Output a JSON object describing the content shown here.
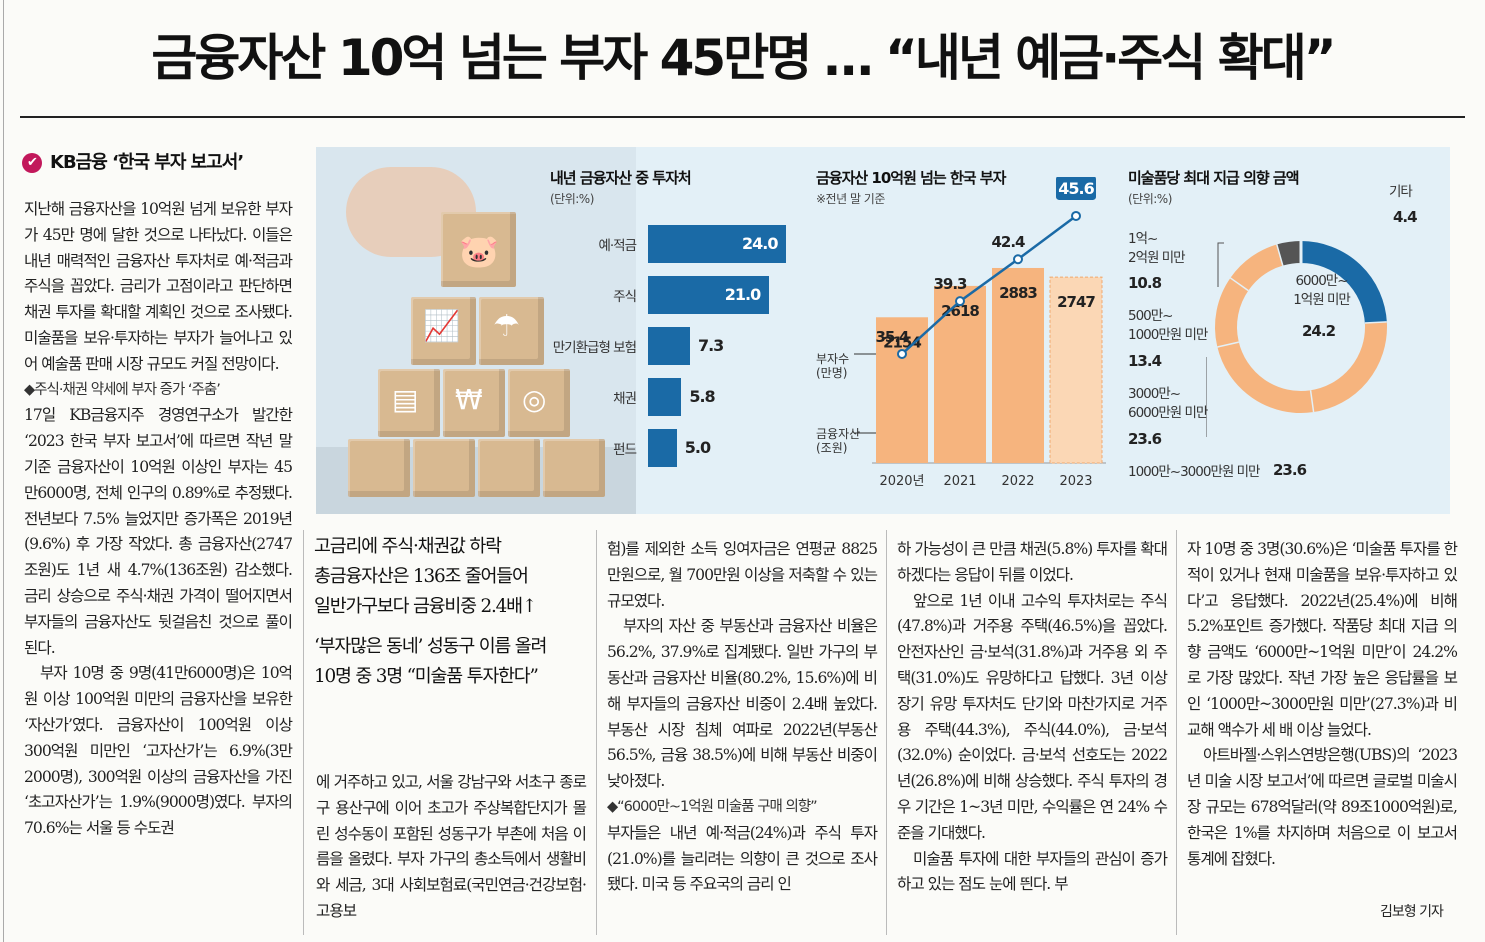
{
  "headline": "금융자산 10억 넘는 부자 45만명 … “내년 예금·주식 확대”",
  "section_label": "KB금융 ‘한국 부자 보고서’",
  "col1": {
    "p1": "지난해 금융자산을 10억원 넘게 보유한 부자가 45만 명에 달한 것으로 나타났다. 이들은 내년 매력적인 금융자산 투자처로 예·적금과 주식을 꼽았다. 금리가 고점이라고 판단하면 채권 투자를 확대할 계획인 것으로 조사됐다. 미술품을 보유·투자하는 부자가 늘어나고 있어 예술품 판매 시장 규모도 커질 전망이다.",
    "sub1": "◆주식·채권 약세에 부자 증가 ‘주춤’",
    "p2": "17일 KB금융지주 경영연구소가 발간한 ‘2023 한국 부자 보고서’에 따르면 작년 말 기준 금융자산이 10억원 이상인 부자는 45만6000명, 전체 인구의 0.89%로 추정됐다. 전년보다 7.5% 늘었지만 증가폭은 2019년(9.6%) 후 가장 작았다. 총 금융자산(2747조원)도 1년 새 4.7%(136조원) 감소했다. 금리 상승으로 주식·채권 가격이 떨어지면서 부자들의 금융자산도 뒷걸음친 것으로 풀이된다.",
    "p3": "부자 10명 중 9명(41만6000명)은 10억원 이상 100억원 미만의 금융자산을 보유한 ‘자산가’였다. 금융자산이 100억원 이상 300억원 미만인 ‘고자산가’는 6.9%(3만2000명), 300억원 이상의 금융자산을 가진 ‘초고자산가’는 1.9%(9000명)였다. 부자의 70.6%는 서울 등 수도권"
  },
  "pull": {
    "l1": "고금리에 주식·채권값 하락",
    "l2": "총금융자산은 136조 줄어들어",
    "l3": "일반가구보다 금융비중 2.4배↑",
    "l4": "‘부자많은 동네’ 성동구 이름 올려",
    "l5": "10명 중 3명 “미술품 투자한다”"
  },
  "col2": {
    "p1": "에 거주하고 있고, 서울 강남구와 서초구 종로구 용산구에 이어 초고가 주상복합단지가 몰린 성수동이 포함된 성동구가 부촌에 처음 이름을 올렸다. 부자 가구의 총소득에서 생활비와 세금, 3대 사회보험료(국민연금·건강보험·고용보"
  },
  "col3": {
    "p1": "험)를 제외한 소득 잉여자금은 연평균 8825만원으로, 월 700만원 이상을 저축할 수 있는 규모였다.",
    "p2": "부자의 자산 중 부동산과 금융자산 비율은 56.2%, 37.9%로 집계됐다. 일반 가구의 부동산과 금융자산 비율(80.2%, 15.6%)에 비해 부자들의 금융자산 비중이 2.4배 높았다. 부동산 시장 침체 여파로 2022년(부동산 56.5%, 금융 38.5%)에 비해 부동산 비중이 낮아졌다.",
    "sub1": "◆“6000만~1억원 미술품 구매 의향”",
    "p3": "부자들은 내년 예·적금(24%)과 주식 투자(21.0%)를 늘리려는 의향이 큰 것으로 조사됐다. 미국 등 주요국의 금리 인"
  },
  "col4": {
    "p1": "하 가능성이 큰 만큼 채권(5.8%) 투자를 확대하겠다는 응답이 뒤를 이었다.",
    "p2": "앞으로 1년 이내 고수익 투자처로는 주식(47.8%)과 거주용 주택(46.5%)을 꼽았다. 안전자산인 금·보석(31.8%)과 거주용 외 주택(31.0%)도 유망하다고 답했다. 3년 이상 장기 유망 투자처도 단기와 마찬가지로 거주용 주택(44.3%), 주식(44.0%), 금·보석(32.0%) 순이었다. 금·보석 선호도는 2022년(26.8%)에 비해 상승했다. 주식 투자의 경우 기간은 1~3년 미만, 수익률은 연 24% 수준을 기대했다.",
    "p3": "미술품 투자에 대한 부자들의 관심이 증가하고 있는 점도 눈에 띈다. 부"
  },
  "col5": {
    "p1": "자 10명 중 3명(30.6%)은 ‘미술품 투자를 한 적이 있거나 현재 미술품을 보유·투자하고 있다’고 응답했다. 2022년(25.4%)에 비해 5.2%포인트 증가했다. 작품당 최대 지급 의향 금액도 ‘6000만~1억원 미만’이 24.2%로 가장 많았다. 작년 가장 높은 응답률을 보인 ‘1000만~3000만원 미만’(27.3%)과 비교해 액수가 세 배 이상 늘었다.",
    "p2": "아트바젤·스위스연방은행(UBS)의 ‘2023년 미술 시장 보고서’에 따르면 글로벌 미술시장 규모는 678억달러(약 89조1000억원)로, 한국은 1%를 차지하며 처음으로 이 보고서 통계에 잡혔다."
  },
  "byline": "김보형 기자",
  "colors": {
    "navy": "#1a6aa6",
    "orange": "#f6b47e",
    "bg": "#e3f0f7",
    "accent": "#c2185b",
    "gray": "#555555"
  },
  "chart_data": [
    {
      "type": "bar",
      "title": "내년 금융자산 중 투자처",
      "unit_note": "(단위:%)",
      "categories": [
        "예·적금",
        "주식",
        "만기환급형 보험",
        "채권",
        "펀드"
      ],
      "values": [
        24.0,
        21.0,
        7.3,
        5.8,
        5.0
      ],
      "labels": [
        "24.0",
        "21.0",
        "7.3",
        "5.8",
        "5.0"
      ],
      "orientation": "horizontal"
    },
    {
      "type": "bar",
      "title": "금융자산 10억원 넘는 한국 부자",
      "note": "※전년 말 기준",
      "categories": [
        "2020년",
        "2021",
        "2022",
        "2023"
      ],
      "series": [
        {
          "name": "금융자산 (조원)",
          "type": "bar",
          "values": [
            2154,
            2618,
            2883,
            2747
          ],
          "labels": [
            "2154",
            "2618",
            "2883",
            "2747"
          ]
        },
        {
          "name": "부자수 (만명)",
          "type": "line",
          "values": [
            35.4,
            39.3,
            42.4,
            45.6
          ],
          "labels": [
            "35.4",
            "39.3",
            "42.4",
            "45.6"
          ]
        }
      ],
      "series_label_1": "부자수",
      "series_label_1b": "(만명)",
      "series_label_2": "금융자산",
      "series_label_2b": "(조원)",
      "ylim_bar": [
        0,
        3400
      ],
      "ylim_line": [
        30,
        47
      ]
    },
    {
      "type": "pie",
      "title": "미술품당 최대 지급 의향 금액",
      "unit_note": "(단위:%)",
      "slices": [
        {
          "label_1": "6000만~",
          "label_2": "1억원 미만",
          "value": 24.2,
          "value_label": "24.2",
          "color": "#1a6aa6"
        },
        {
          "label_1": "1000만~3000만원 미만",
          "label_2": "",
          "value": 23.6,
          "value_label": "23.6",
          "color": "#f6b47e"
        },
        {
          "label_1": "3000만~",
          "label_2": "6000만원 미만",
          "value": 23.6,
          "value_label": "23.6",
          "color": "#f6b47e"
        },
        {
          "label_1": "500만~",
          "label_2": "1000만원 미만",
          "value": 13.4,
          "value_label": "13.4",
          "color": "#f6b47e"
        },
        {
          "label_1": "1억~",
          "label_2": "2억원 미만",
          "value": 10.8,
          "value_label": "10.8",
          "color": "#f6b47e"
        },
        {
          "label_1": "기타",
          "label_2": "",
          "value": 4.4,
          "value_label": "4.4",
          "color": "#555555"
        }
      ]
    }
  ]
}
